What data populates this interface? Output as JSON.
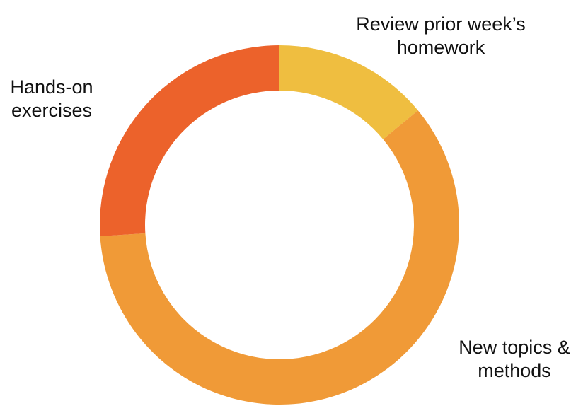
{
  "chart_data": {
    "type": "pie",
    "donut": true,
    "title": "",
    "legend": "none",
    "slices": [
      {
        "label_lines": [
          "Review prior week’s",
          "homework"
        ],
        "value": 14,
        "color": "#EFBE40"
      },
      {
        "label_lines": [
          "New topics &",
          "methods"
        ],
        "value": 60,
        "color": "#F09A37"
      },
      {
        "label_lines": [
          "Hands-on",
          "exercises"
        ],
        "value": 26,
        "color": "#EC622B"
      }
    ]
  }
}
